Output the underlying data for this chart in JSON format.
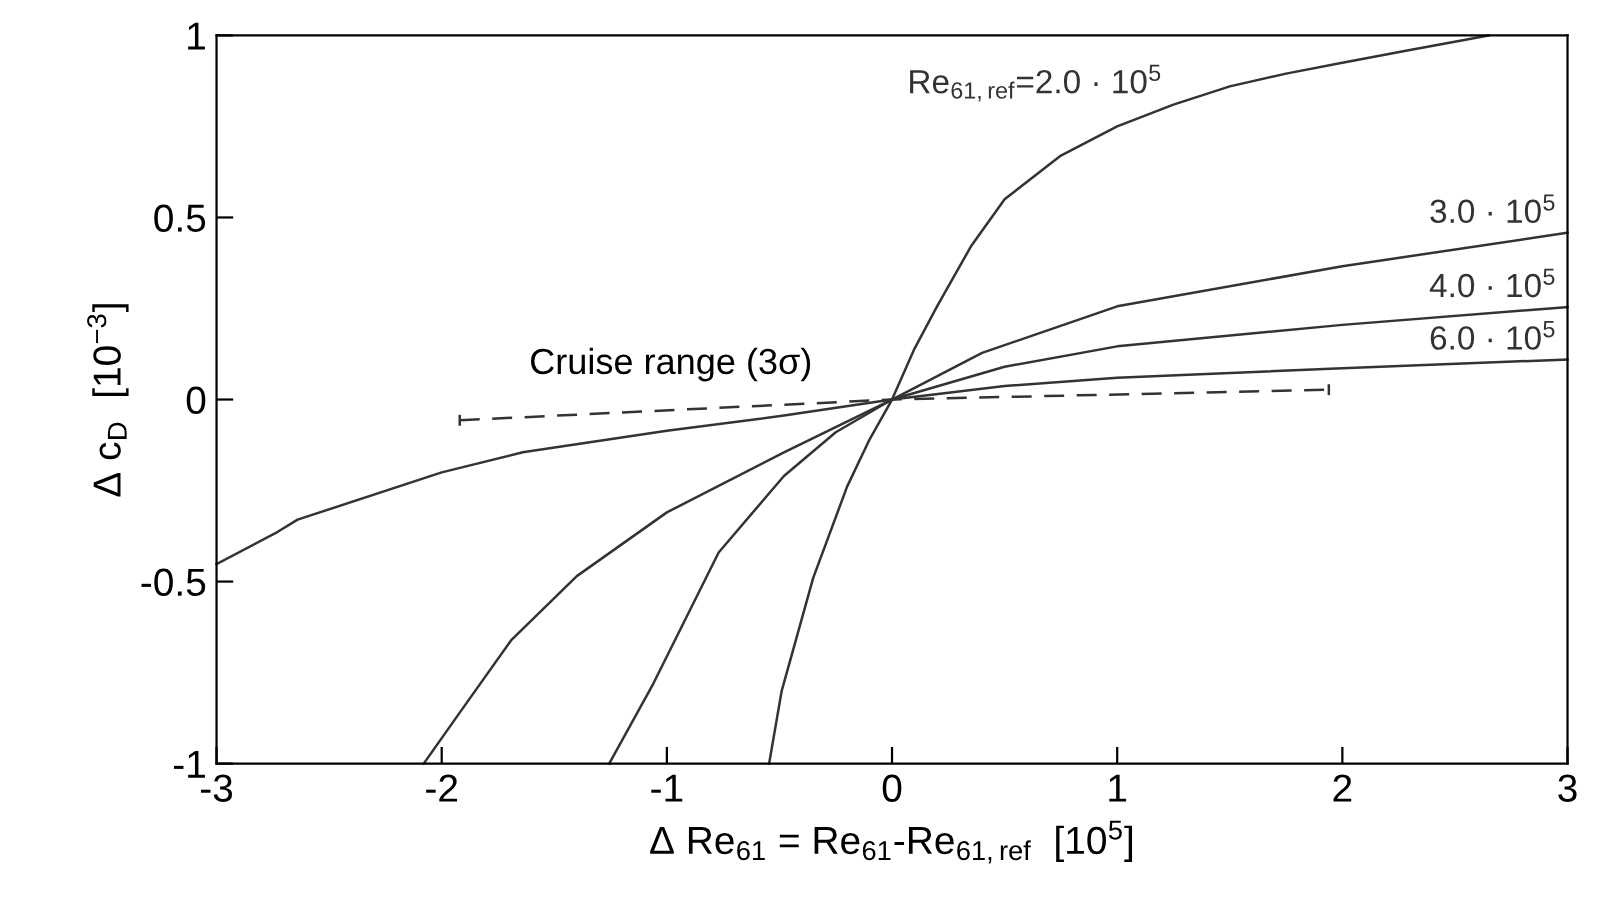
{
  "chart_data": {
    "type": "line",
    "xlabel": "Δ Re$_{61}$ = Re$_{61}$-Re$_{61,ref}$  [10$^{5}$]",
    "ylabel": "Δ c$_{D}$  [10$^{−3}$]",
    "xlim": [
      -3,
      3
    ],
    "ylim": [
      -1,
      1
    ],
    "xticks": [
      -3,
      -2,
      -1,
      0,
      1,
      2,
      3
    ],
    "yticks": [
      -1,
      -0.5,
      0,
      0.5,
      1
    ],
    "grid": false,
    "marker": "none",
    "series": [
      {
        "name": "Re$_{61,ref}$=2.0 · 10$^{5}$",
        "color": "#333333",
        "line_style": "solid",
        "x": [
          -0.546,
          -0.49,
          -0.35,
          -0.2,
          -0.1,
          0,
          0.1,
          0.2,
          0.35,
          0.5,
          0.75,
          1,
          1.25,
          1.5,
          1.75,
          2,
          2.3,
          2.65
        ],
        "values": [
          -1,
          -0.8,
          -0.49,
          -0.24,
          -0.11,
          0,
          0.14,
          0.256,
          0.42,
          0.55,
          0.67,
          0.75,
          0.81,
          0.86,
          0.895,
          0.925,
          0.96,
          1.0
        ]
      },
      {
        "name": "3.0 · 10$^{5}$",
        "color": "#333333",
        "line_style": "solid",
        "x": [
          -1.256,
          -1.06,
          -0.77,
          -0.48,
          -0.25,
          0,
          0.4,
          1,
          2,
          3
        ],
        "values": [
          -1,
          -0.78,
          -0.42,
          -0.21,
          -0.09,
          0,
          0.128,
          0.256,
          0.366,
          0.458
        ]
      },
      {
        "name": "4.0 · 10$^{5}$",
        "color": "#333333",
        "line_style": "solid",
        "x": [
          -2.08,
          -1.92,
          -1.69,
          -1.4,
          -1,
          -0.48,
          0,
          0.5,
          1,
          2,
          3
        ],
        "values": [
          -1,
          -0.86,
          -0.66,
          -0.485,
          -0.31,
          -0.145,
          0,
          0.09,
          0.146,
          0.205,
          0.254
        ]
      },
      {
        "name": "6.0 · 10$^{5}$",
        "color": "#333333",
        "line_style": "solid",
        "x": [
          -3,
          -2.73,
          -2.64,
          -2,
          -1.64,
          -1,
          -0.48,
          0,
          0.5,
          1,
          2,
          3
        ],
        "values": [
          -0.452,
          -0.364,
          -0.33,
          -0.2,
          -0.145,
          -0.086,
          -0.044,
          0,
          0.037,
          0.06,
          0.086,
          0.11
        ]
      },
      {
        "name": "Cruise range (3σ)",
        "color": "#333333",
        "line_style": "dashed",
        "x": [
          -1.92,
          0,
          1.94
        ],
        "values": [
          -0.057,
          0,
          0.027
        ],
        "errors": [
          0.015,
          null,
          0.015
        ]
      }
    ]
  }
}
